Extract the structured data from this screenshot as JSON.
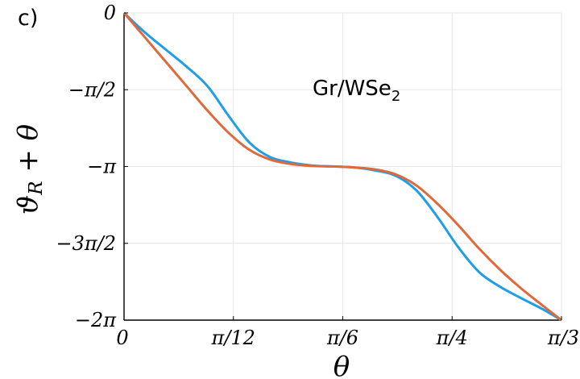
{
  "panel_label": "c)",
  "annotation": {
    "text": "Gr/WSe",
    "sub": "2"
  },
  "chart_data": {
    "type": "line",
    "xlabel": "θ",
    "ylabel": "ϑ_R + θ",
    "xlim": [
      0,
      1.0472
    ],
    "ylim": [
      -6.2832,
      0
    ],
    "grid": true,
    "x_ticks": [
      {
        "value": 0,
        "label": "0"
      },
      {
        "value": 0.2618,
        "label": "π/12"
      },
      {
        "value": 0.5236,
        "label": "π/6"
      },
      {
        "value": 0.7854,
        "label": "π/4"
      },
      {
        "value": 1.0472,
        "label": "π/3"
      }
    ],
    "y_ticks": [
      {
        "value": 0,
        "label": "0"
      },
      {
        "value": -1.5708,
        "label": "−π/2"
      },
      {
        "value": -3.1416,
        "label": "−π"
      },
      {
        "value": -4.7124,
        "label": "−3π/2"
      },
      {
        "value": -6.2832,
        "label": "−2π"
      }
    ],
    "series": [
      {
        "color": "#1f9ee8",
        "x": [
          0,
          0.05,
          0.1,
          0.15,
          0.2,
          0.25,
          0.3,
          0.35,
          0.4,
          0.45,
          0.5,
          0.55,
          0.6,
          0.65,
          0.7,
          0.75,
          0.8,
          0.85,
          0.9,
          0.95,
          1.0,
          1.0472
        ],
        "y": [
          0,
          -0.4,
          -0.75,
          -1.1,
          -1.5,
          -2.1,
          -2.65,
          -2.95,
          -3.06,
          -3.12,
          -3.14,
          -3.16,
          -3.22,
          -3.33,
          -3.63,
          -4.17,
          -4.79,
          -5.3,
          -5.6,
          -5.83,
          -6.05,
          -6.2832
        ]
      },
      {
        "color": "#e0693c",
        "x": [
          0,
          0.05,
          0.1,
          0.15,
          0.2,
          0.25,
          0.3,
          0.35,
          0.4,
          0.45,
          0.5,
          0.55,
          0.6,
          0.65,
          0.7,
          0.75,
          0.8,
          0.85,
          0.9,
          0.95,
          1.0,
          1.0472
        ],
        "y": [
          0,
          -0.5,
          -1.0,
          -1.5,
          -2.0,
          -2.45,
          -2.8,
          -3.0,
          -3.09,
          -3.13,
          -3.14,
          -3.16,
          -3.2,
          -3.3,
          -3.53,
          -3.9,
          -4.34,
          -4.82,
          -5.25,
          -5.63,
          -5.97,
          -6.2832
        ]
      }
    ]
  }
}
